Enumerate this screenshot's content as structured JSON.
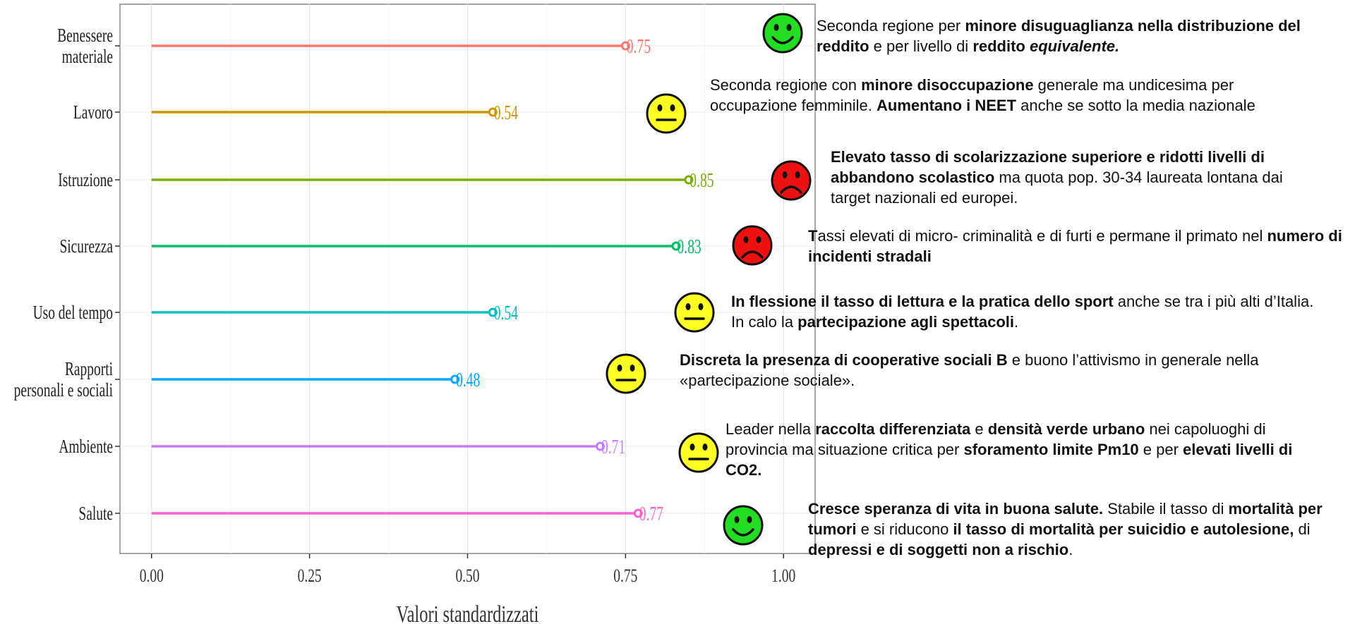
{
  "chart_data": {
    "type": "lollipop",
    "categories": [
      "Benessere materiale",
      "Lavoro",
      "Istruzione",
      "Sicurezza",
      "Uso del tempo",
      "Rapporti personali e sociali",
      "Ambiente",
      "Salute"
    ],
    "values": [
      0.75,
      0.54,
      0.85,
      0.83,
      0.54,
      0.48,
      0.71,
      0.77
    ],
    "colors": [
      "#F8766D",
      "#CD9600",
      "#7CAE00",
      "#00BE67",
      "#00BFC4",
      "#00A9FF",
      "#C77CFF",
      "#FF61CC"
    ],
    "xlabel": "Valori standardizzati",
    "xlim": [
      -0.05,
      1.05
    ],
    "xticks": [
      {
        "value": 0,
        "label": "0.00"
      },
      {
        "value": 0.25,
        "label": "0.25"
      },
      {
        "value": 0.5,
        "label": "0.50"
      },
      {
        "value": 0.75,
        "label": "0.75"
      },
      {
        "value": 1,
        "label": "1.00"
      }
    ],
    "grid": true,
    "moods": [
      "happy",
      "neutral",
      "sad",
      "sad",
      "neutral",
      "neutral",
      "neutral",
      "happy"
    ],
    "annotations": [
      [
        {
          "text": "Seconda regione per "
        },
        {
          "text": "minore disuguaglianza nella distribuzione del reddito",
          "b": true
        },
        {
          "text": " e per livello di "
        },
        {
          "text": "reddito ",
          "b": true
        },
        {
          "text": "equivalente.",
          "b": true,
          "i": true
        }
      ],
      [
        {
          "text": "Seconda regione con "
        },
        {
          "text": "minore disoccupazione",
          "b": true
        },
        {
          "text": " generale ma undicesima per occupazione femminile. "
        },
        {
          "text": "Aumentano i NEET",
          "b": true
        },
        {
          "text": " anche se sotto la media nazionale"
        }
      ],
      [
        {
          "text": "Elevato tasso di scolarizzazione superiore e ridotti livelli di abbandono scolastico",
          "b": true
        },
        {
          "text": " ma quota pop. 30-34 laureata lontana dai target nazionali ed europei."
        }
      ],
      [
        {
          "text": "T",
          "b": true
        },
        {
          "text": "assi elevati di micro- criminalità e di furti e permane il primato nel "
        },
        {
          "text": "numero di incidenti stradali",
          "b": true
        }
      ],
      [
        {
          "text": "In flessione il tasso di lettura e la pratica dello sport",
          "b": true
        },
        {
          "text": " anche se tra i più alti d’Italia. In calo la "
        },
        {
          "text": "partecipazione agli spettacoli",
          "b": true
        },
        {
          "text": "."
        }
      ],
      [
        {
          "text": "Discreta la presenza di cooperative sociali B",
          "b": true
        },
        {
          "text": " e buono l’attivismo in generale nella «partecipazione sociale»."
        }
      ],
      [
        {
          "text": "Leader nella "
        },
        {
          "text": "raccolta differenziata",
          "b": true
        },
        {
          "text": " e "
        },
        {
          "text": "densità verde urbano",
          "b": true
        },
        {
          "text": " nei capoluoghi di provincia ma situazione critica per "
        },
        {
          "text": "sforamento limite Pm10",
          "b": true
        },
        {
          "text": " e per "
        },
        {
          "text": "elevati livelli di CO2.",
          "b": true
        }
      ],
      [
        {
          "text": "Cresce speranza di vita in buona salute.",
          "b": true
        },
        {
          "text": " Stabile il tasso di "
        },
        {
          "text": "mortalità per tumori",
          "b": true
        },
        {
          "text": " e si riducono "
        },
        {
          "text": "il tasso di mortalità per suicidio e autolesione,",
          "b": true
        },
        {
          "text": " di "
        },
        {
          "text": "depressi e di soggetti non a rischio",
          "b": true
        },
        {
          "text": "."
        }
      ]
    ]
  }
}
